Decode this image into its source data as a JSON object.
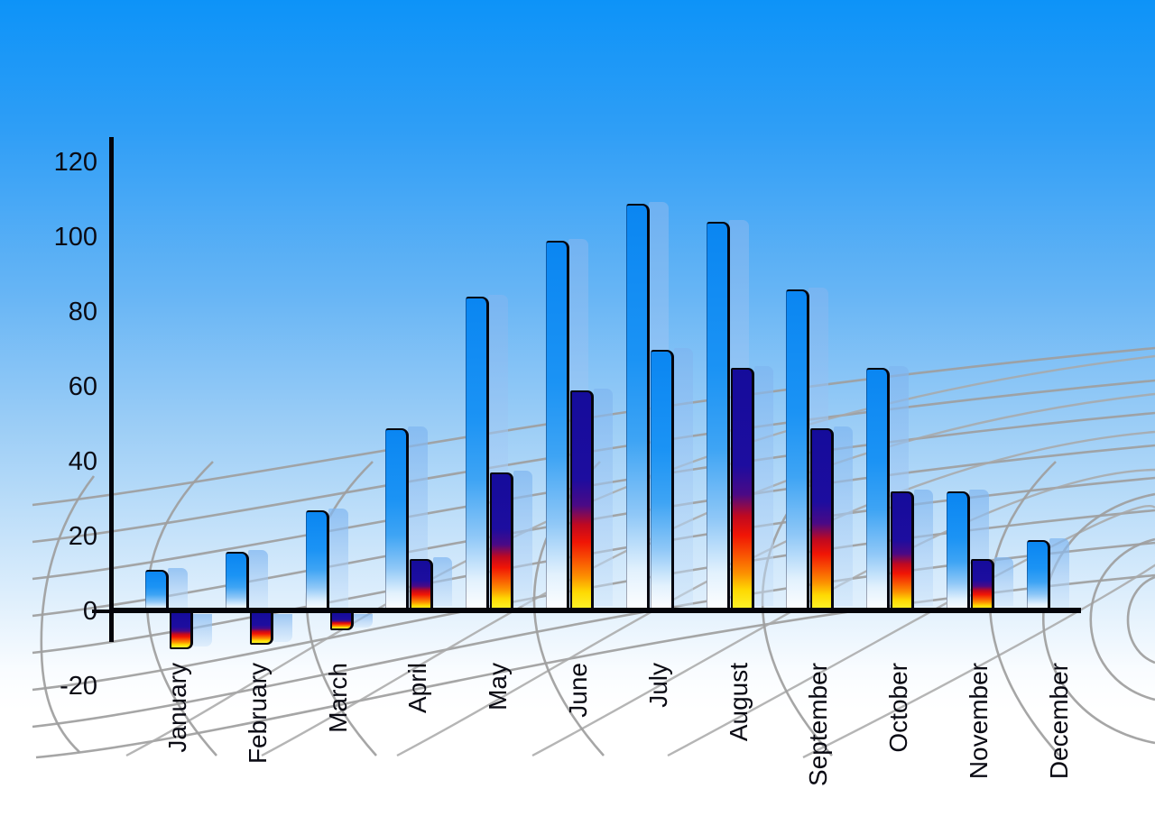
{
  "chart_data": {
    "type": "bar",
    "title": "",
    "xlabel": "",
    "ylabel": "",
    "categories": [
      "January",
      "February",
      "March",
      "April",
      "May",
      "June",
      "July",
      "August",
      "September",
      "October",
      "November",
      "December"
    ],
    "series": [
      {
        "name": "series-1-blue",
        "values": [
          11,
          16,
          27,
          49,
          84,
          99,
          109,
          104,
          86,
          65,
          32,
          19
        ]
      },
      {
        "name": "series-2-rainbow",
        "values": [
          -10,
          -9,
          -5,
          14,
          37,
          59,
          70,
          65,
          49,
          32,
          14,
          null
        ],
        "styles": [
          "rainbow",
          "rainbow",
          "rainbow",
          "rainbow",
          "rainbow",
          "rainbow",
          "blue",
          "rainbow",
          "rainbow",
          "rainbow",
          "rainbow",
          null
        ]
      }
    ],
    "y_ticks": [
      120,
      100,
      80,
      60,
      40,
      20,
      0,
      -20
    ],
    "ylim": [
      -20,
      120
    ],
    "legend": "none",
    "grid": "perspective-mesh-backdrop",
    "colors": {
      "sky_top": "#0d93f8",
      "sky_bottom": "#ffffff",
      "bar_blue_top": "#0a86f2",
      "bar_blue_bottom": "#ffffff",
      "bar_shadow": "#aecdf0",
      "rainbow_navy": "#150c9b",
      "rainbow_red": "#f01505",
      "rainbow_yellow": "#fcf42a",
      "axis": "#04040a",
      "grid_line": "#9e9e9e",
      "label_text": "#0b0b14"
    }
  }
}
